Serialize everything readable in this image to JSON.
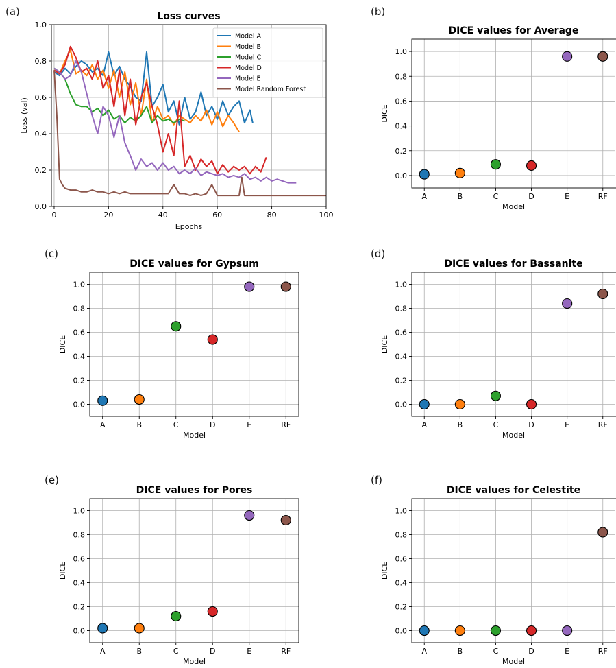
{
  "chart_data": [
    {
      "panel": "(a)",
      "type": "line",
      "title": "Loss curves",
      "xlabel": "Epochs",
      "ylabel": "Loss (val)",
      "xlim": [
        -1,
        100
      ],
      "ylim": [
        0.0,
        1.0
      ],
      "xticks": [
        "0",
        "20",
        "40",
        "60",
        "80",
        "100"
      ],
      "yticks": [
        "0.0",
        "0.2",
        "0.4",
        "0.6",
        "0.8",
        "1.0"
      ],
      "grid": true,
      "legend": "top-right",
      "series": [
        {
          "name": "Model A",
          "color": "#1f77b4",
          "x": [
            0,
            2,
            4,
            6,
            8,
            10,
            12,
            14,
            16,
            18,
            20,
            22,
            24,
            26,
            28,
            30,
            32,
            34,
            36,
            38,
            40,
            42,
            44,
            46,
            48,
            50,
            52,
            54,
            56,
            58,
            60,
            62,
            64,
            66,
            68,
            70,
            72,
            73
          ],
          "y": [
            0.74,
            0.72,
            0.76,
            0.73,
            0.77,
            0.8,
            0.78,
            0.74,
            0.76,
            0.72,
            0.85,
            0.72,
            0.77,
            0.7,
            0.66,
            0.6,
            0.58,
            0.85,
            0.55,
            0.6,
            0.67,
            0.52,
            0.58,
            0.45,
            0.6,
            0.48,
            0.52,
            0.63,
            0.5,
            0.55,
            0.48,
            0.58,
            0.5,
            0.55,
            0.58,
            0.46,
            0.53,
            0.46
          ]
        },
        {
          "name": "Model B",
          "color": "#ff7f0e",
          "x": [
            0,
            2,
            4,
            6,
            8,
            10,
            12,
            14,
            16,
            18,
            20,
            22,
            24,
            26,
            28,
            30,
            32,
            34,
            36,
            38,
            40,
            42,
            44,
            46,
            48,
            50,
            52,
            54,
            56,
            58,
            60,
            62,
            64,
            66,
            68
          ],
          "y": [
            0.75,
            0.73,
            0.8,
            0.86,
            0.73,
            0.75,
            0.72,
            0.78,
            0.7,
            0.75,
            0.65,
            0.75,
            0.6,
            0.74,
            0.56,
            0.68,
            0.5,
            0.7,
            0.46,
            0.55,
            0.48,
            0.5,
            0.45,
            0.5,
            0.48,
            0.46,
            0.5,
            0.47,
            0.53,
            0.45,
            0.52,
            0.44,
            0.5,
            0.46,
            0.41
          ]
        },
        {
          "name": "Model C",
          "color": "#2ca02c",
          "x": [
            0,
            2,
            4,
            6,
            8,
            10,
            12,
            14,
            16,
            18,
            20,
            22,
            24,
            26,
            28,
            30,
            32,
            34,
            36,
            38,
            40,
            42,
            44,
            46,
            48
          ],
          "y": [
            0.76,
            0.74,
            0.7,
            0.62,
            0.56,
            0.55,
            0.55,
            0.52,
            0.54,
            0.5,
            0.53,
            0.48,
            0.5,
            0.46,
            0.49,
            0.47,
            0.5,
            0.55,
            0.46,
            0.5,
            0.47,
            0.48,
            0.46,
            0.48,
            0.47
          ]
        },
        {
          "name": "Model D",
          "color": "#d62728",
          "x": [
            0,
            2,
            4,
            6,
            8,
            10,
            12,
            14,
            16,
            18,
            20,
            22,
            24,
            26,
            28,
            30,
            32,
            34,
            36,
            38,
            40,
            42,
            44,
            46,
            48,
            50,
            52,
            54,
            56,
            58,
            60,
            62,
            64,
            66,
            68,
            70,
            72,
            74,
            76,
            78
          ],
          "y": [
            0.75,
            0.73,
            0.78,
            0.88,
            0.82,
            0.74,
            0.76,
            0.7,
            0.8,
            0.65,
            0.72,
            0.55,
            0.75,
            0.5,
            0.7,
            0.45,
            0.6,
            0.68,
            0.55,
            0.45,
            0.3,
            0.4,
            0.28,
            0.58,
            0.22,
            0.28,
            0.2,
            0.26,
            0.22,
            0.25,
            0.18,
            0.23,
            0.19,
            0.22,
            0.2,
            0.22,
            0.18,
            0.22,
            0.19,
            0.27
          ]
        },
        {
          "name": "Model E",
          "color": "#9467bd",
          "x": [
            0,
            2,
            4,
            6,
            8,
            10,
            12,
            14,
            16,
            18,
            20,
            22,
            24,
            26,
            28,
            30,
            32,
            34,
            36,
            38,
            40,
            42,
            44,
            46,
            48,
            50,
            52,
            54,
            56,
            58,
            60,
            62,
            64,
            66,
            68,
            70,
            72,
            74,
            76,
            78,
            80,
            82,
            84,
            86,
            88,
            89
          ],
          "y": [
            0.76,
            0.74,
            0.7,
            0.72,
            0.8,
            0.74,
            0.62,
            0.5,
            0.4,
            0.55,
            0.5,
            0.38,
            0.5,
            0.35,
            0.28,
            0.2,
            0.26,
            0.22,
            0.24,
            0.2,
            0.24,
            0.2,
            0.22,
            0.18,
            0.2,
            0.18,
            0.21,
            0.17,
            0.19,
            0.18,
            0.17,
            0.18,
            0.16,
            0.17,
            0.16,
            0.18,
            0.15,
            0.16,
            0.14,
            0.16,
            0.14,
            0.15,
            0.14,
            0.13,
            0.13,
            0.13
          ]
        },
        {
          "name": "Model Random Forest",
          "color": "#8c564b",
          "x": [
            0,
            1,
            2,
            3,
            4,
            6,
            8,
            10,
            12,
            14,
            16,
            18,
            20,
            22,
            24,
            26,
            28,
            30,
            32,
            34,
            36,
            38,
            40,
            42,
            44,
            46,
            48,
            50,
            52,
            54,
            56,
            58,
            60,
            62,
            64,
            66,
            68,
            69,
            70,
            72,
            74,
            76,
            78,
            80,
            85,
            90,
            95,
            100
          ],
          "y": [
            0.75,
            0.5,
            0.15,
            0.12,
            0.1,
            0.09,
            0.09,
            0.08,
            0.08,
            0.09,
            0.08,
            0.08,
            0.07,
            0.08,
            0.07,
            0.08,
            0.07,
            0.07,
            0.07,
            0.07,
            0.07,
            0.07,
            0.07,
            0.07,
            0.12,
            0.07,
            0.07,
            0.06,
            0.07,
            0.06,
            0.07,
            0.12,
            0.06,
            0.06,
            0.06,
            0.06,
            0.06,
            0.16,
            0.06,
            0.06,
            0.06,
            0.06,
            0.06,
            0.06,
            0.06,
            0.06,
            0.06,
            0.06
          ]
        }
      ]
    },
    {
      "panel": "(b)",
      "type": "scatter",
      "title": "DICE values for Average",
      "xlabel": "Model",
      "ylabel": "DICE",
      "categories": [
        "A",
        "B",
        "C",
        "D",
        "E",
        "RF"
      ],
      "values": [
        0.01,
        0.02,
        0.09,
        0.08,
        0.96,
        0.96
      ],
      "colors": [
        "#1f77b4",
        "#ff7f0e",
        "#2ca02c",
        "#d62728",
        "#9467bd",
        "#8c564b"
      ],
      "ylim": [
        -0.1,
        1.1
      ],
      "yticks": [
        "0.0",
        "0.2",
        "0.4",
        "0.6",
        "0.8",
        "1.0"
      ],
      "grid": true
    },
    {
      "panel": "(c)",
      "type": "scatter",
      "title": "DICE values for Gypsum",
      "xlabel": "Model",
      "ylabel": "DICE",
      "categories": [
        "A",
        "B",
        "C",
        "D",
        "E",
        "RF"
      ],
      "values": [
        0.03,
        0.04,
        0.65,
        0.54,
        0.98,
        0.98
      ],
      "colors": [
        "#1f77b4",
        "#ff7f0e",
        "#2ca02c",
        "#d62728",
        "#9467bd",
        "#8c564b"
      ],
      "ylim": [
        -0.1,
        1.1
      ],
      "yticks": [
        "0.0",
        "0.2",
        "0.4",
        "0.6",
        "0.8",
        "1.0"
      ],
      "grid": true
    },
    {
      "panel": "(d)",
      "type": "scatter",
      "title": "DICE values for Bassanite",
      "xlabel": "Model",
      "ylabel": "DICE",
      "categories": [
        "A",
        "B",
        "C",
        "D",
        "E",
        "RF"
      ],
      "values": [
        0.0,
        0.0,
        0.07,
        0.0,
        0.84,
        0.92
      ],
      "colors": [
        "#1f77b4",
        "#ff7f0e",
        "#2ca02c",
        "#d62728",
        "#9467bd",
        "#8c564b"
      ],
      "ylim": [
        -0.1,
        1.1
      ],
      "yticks": [
        "0.0",
        "0.2",
        "0.4",
        "0.6",
        "0.8",
        "1.0"
      ],
      "grid": true
    },
    {
      "panel": "(e)",
      "type": "scatter",
      "title": "DICE values for Pores",
      "xlabel": "Model",
      "ylabel": "DICE",
      "categories": [
        "A",
        "B",
        "C",
        "D",
        "E",
        "RF"
      ],
      "values": [
        0.02,
        0.02,
        0.12,
        0.16,
        0.96,
        0.92
      ],
      "colors": [
        "#1f77b4",
        "#ff7f0e",
        "#2ca02c",
        "#d62728",
        "#9467bd",
        "#8c564b"
      ],
      "ylim": [
        -0.1,
        1.1
      ],
      "yticks": [
        "0.0",
        "0.2",
        "0.4",
        "0.6",
        "0.8",
        "1.0"
      ],
      "grid": true
    },
    {
      "panel": "(f)",
      "type": "scatter",
      "title": "DICE values for Celestite",
      "xlabel": "Model",
      "ylabel": "DICE",
      "categories": [
        "A",
        "B",
        "C",
        "D",
        "E",
        "RF"
      ],
      "values": [
        0.0,
        0.0,
        0.0,
        0.0,
        0.0,
        0.82
      ],
      "colors": [
        "#1f77b4",
        "#ff7f0e",
        "#2ca02c",
        "#d62728",
        "#9467bd",
        "#8c564b"
      ],
      "ylim": [
        -0.1,
        1.1
      ],
      "yticks": [
        "0.0",
        "0.2",
        "0.4",
        "0.6",
        "0.8",
        "1.0"
      ],
      "grid": true
    }
  ]
}
